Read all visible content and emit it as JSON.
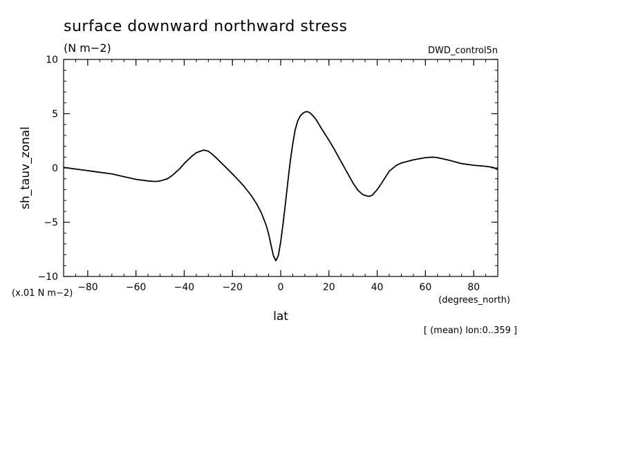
{
  "chart_data": {
    "type": "line",
    "title": "surface downward northward stress",
    "units": "(N m−2)",
    "dataset": "DWD_control5n",
    "ylabel": "sh_tauv_zonal",
    "yscale_label": "(x.01 N m−2)",
    "xlabel": "lat",
    "xunits": "(degrees_north)",
    "footer": "[ (mean) lon:0..359 ]",
    "xlim": [
      -90,
      90
    ],
    "ylim": [
      -10,
      10
    ],
    "xticks": [
      {
        "value": -80,
        "label": "−80"
      },
      {
        "value": -60,
        "label": "−60"
      },
      {
        "value": -40,
        "label": "−40"
      },
      {
        "value": -20,
        "label": "−20"
      },
      {
        "value": 0,
        "label": "0"
      },
      {
        "value": 20,
        "label": "20"
      },
      {
        "value": 40,
        "label": "40"
      },
      {
        "value": 60,
        "label": "60"
      },
      {
        "value": 80,
        "label": "80"
      }
    ],
    "yticks": [
      {
        "value": -10,
        "label": "−10"
      },
      {
        "value": -5,
        "label": "−5"
      },
      {
        "value": 0,
        "label": "0"
      },
      {
        "value": 5,
        "label": "5"
      },
      {
        "value": 10,
        "label": "10"
      }
    ],
    "series": [
      {
        "color": "#000000",
        "x": [
          -90,
          -85,
          -80,
          -75,
          -70,
          -65,
          -60,
          -55,
          -52,
          -50,
          -47,
          -45,
          -42,
          -40,
          -37,
          -35,
          -32,
          -30,
          -28,
          -25,
          -22,
          -20,
          -17,
          -15,
          -12,
          -10,
          -8,
          -6,
          -5,
          -4,
          -3,
          -2,
          -1,
          0,
          1,
          2,
          3,
          4,
          5,
          6,
          7,
          8,
          9,
          10,
          11,
          12,
          13,
          14,
          15,
          17,
          20,
          22,
          25,
          28,
          30,
          32,
          34,
          36,
          37,
          38,
          40,
          42,
          45,
          48,
          50,
          55,
          60,
          63,
          65,
          70,
          75,
          80,
          85,
          88,
          90
        ],
        "y": [
          0.05,
          -0.1,
          -0.25,
          -0.4,
          -0.55,
          -0.8,
          -1.05,
          -1.2,
          -1.25,
          -1.2,
          -1.0,
          -0.7,
          -0.1,
          0.4,
          1.05,
          1.4,
          1.65,
          1.55,
          1.2,
          0.55,
          -0.1,
          -0.55,
          -1.25,
          -1.75,
          -2.6,
          -3.3,
          -4.15,
          -5.3,
          -6.1,
          -7.1,
          -8.1,
          -8.55,
          -8.1,
          -6.8,
          -5.1,
          -3.2,
          -1.2,
          0.7,
          2.2,
          3.5,
          4.3,
          4.75,
          5.0,
          5.15,
          5.2,
          5.1,
          4.9,
          4.65,
          4.35,
          3.6,
          2.55,
          1.8,
          0.6,
          -0.6,
          -1.4,
          -2.05,
          -2.45,
          -2.6,
          -2.6,
          -2.5,
          -2.0,
          -1.35,
          -0.3,
          0.25,
          0.45,
          0.75,
          0.95,
          1.0,
          0.95,
          0.7,
          0.4,
          0.25,
          0.15,
          0.05,
          -0.15
        ]
      }
    ]
  }
}
